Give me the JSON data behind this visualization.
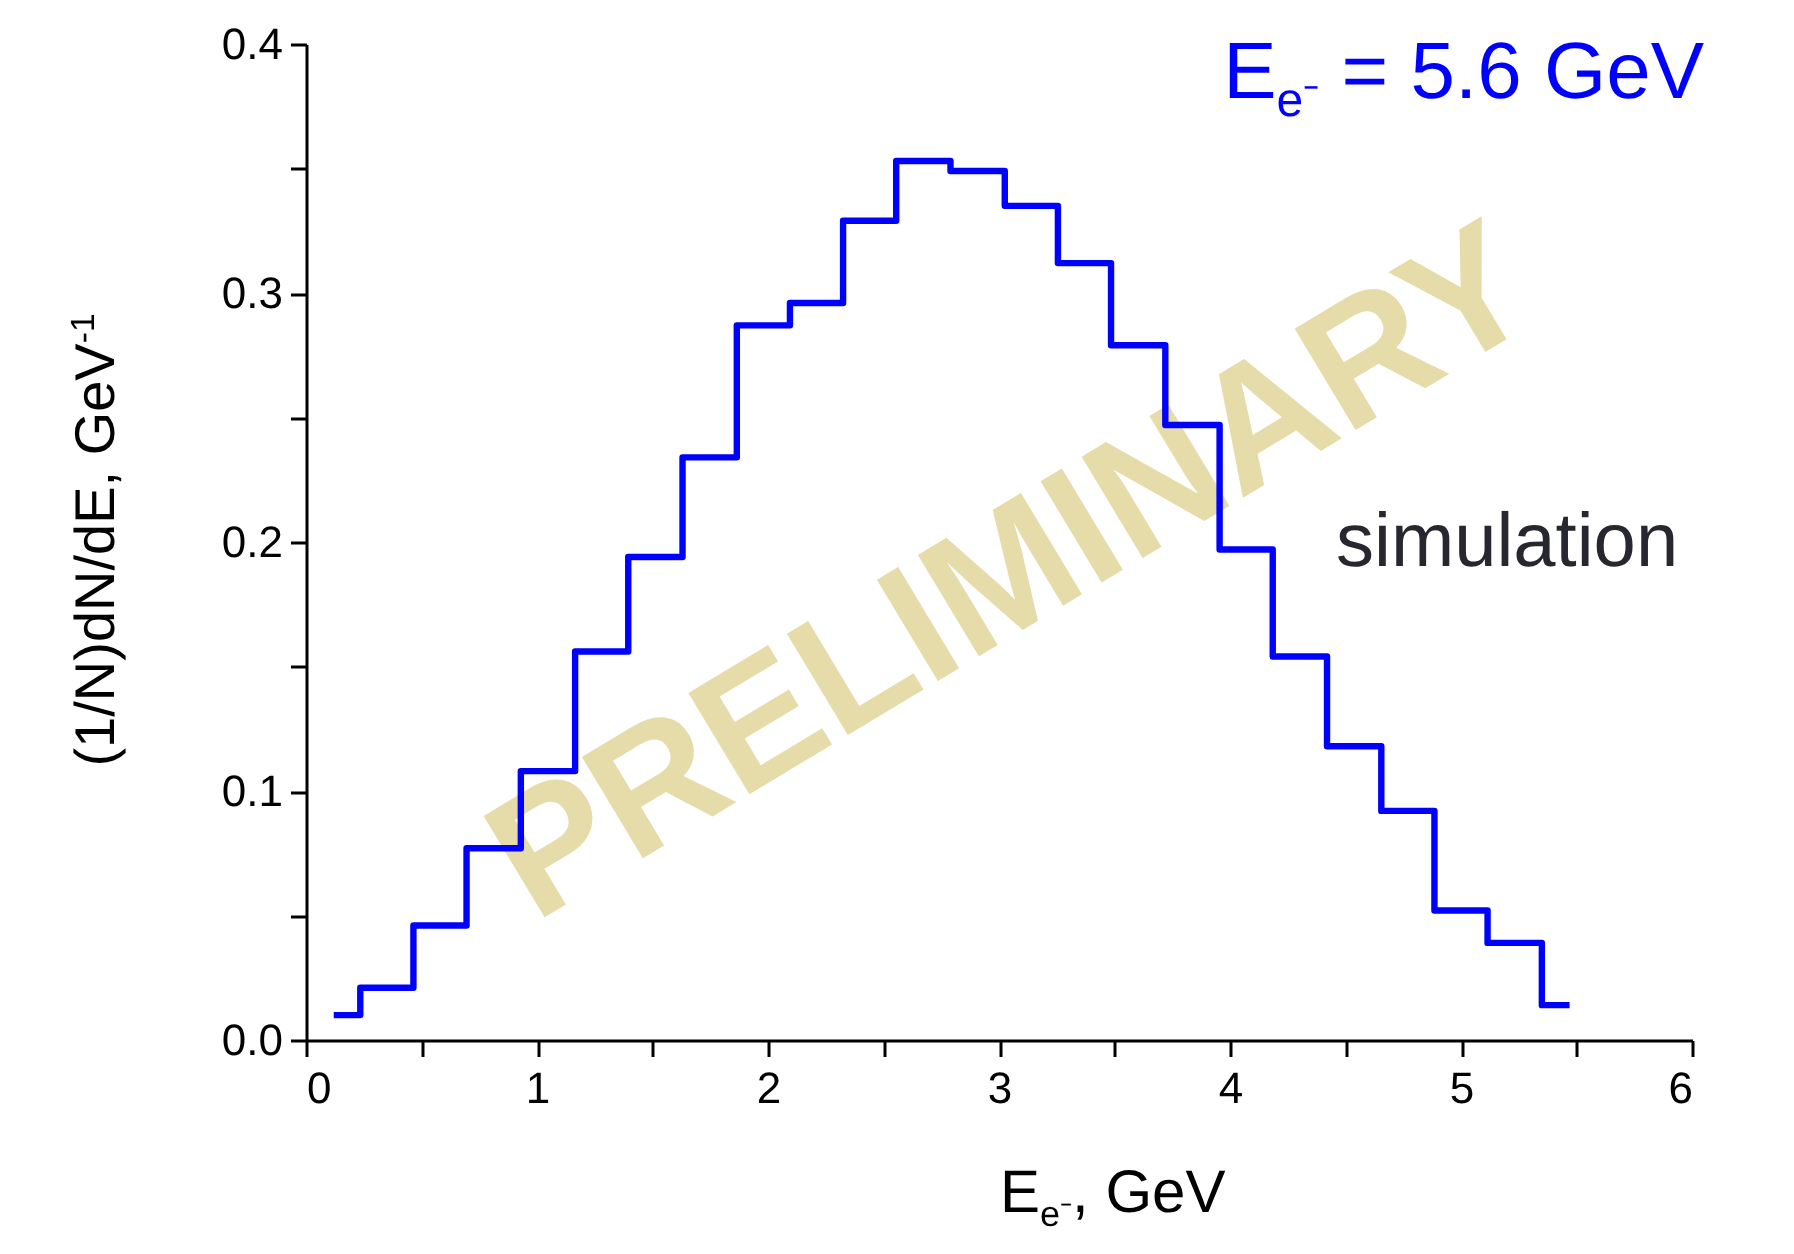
{
  "chart_data": {
    "type": "step",
    "title": "E$_{e⁻}$ = 5.6 GeV",
    "xlabel": "E$_{e⁻}$, GeV",
    "ylabel": "(1/N)dN/dE, GeV$^{-1}$",
    "annotations": [
      "simulation",
      "PRELIMINARY"
    ],
    "x": [
      0.12,
      0.35,
      0.58,
      0.81,
      1.05,
      1.28,
      1.51,
      1.75,
      1.98,
      2.21,
      2.44,
      2.67,
      2.91,
      3.14,
      3.37,
      3.6,
      3.84,
      4.07,
      4.3,
      4.54,
      4.77,
      5.0,
      5.23,
      5.47
    ],
    "series": [
      {
        "color": "#0000ff",
        "values": [
          0.01,
          0.021,
          0.046,
          0.077,
          0.108,
          0.156,
          0.194,
          0.234,
          0.287,
          0.296,
          0.329,
          0.353,
          0.349,
          0.335,
          0.312,
          0.279,
          0.247,
          0.197,
          0.154,
          0.118,
          0.092,
          0.052,
          0.039,
          0.014
        ]
      }
    ],
    "xlim": [
      0,
      6
    ],
    "ylim": [
      0,
      0.4
    ],
    "xticks": [
      0,
      {
        "value": 0.5,
        "label": null
      },
      1,
      {
        "value": 1.5,
        "label": null
      },
      2,
      {
        "value": 2.5,
        "label": null
      },
      3,
      {
        "value": 3.5,
        "label": null
      },
      4,
      {
        "value": 4.5,
        "label": null
      },
      5,
      {
        "value": 5.5,
        "label": null
      },
      6
    ],
    "yticks": [
      "0.0",
      {
        "value": 0.05,
        "label": null
      },
      0.1,
      {
        "value": 0.15,
        "label": null
      },
      0.2,
      {
        "value": 0.25,
        "label": null
      },
      0.3,
      {
        "value": 0.35,
        "label": null
      },
      0.4
    ],
    "grid": false,
    "marker": "none",
    "line_style": "solid"
  }
}
